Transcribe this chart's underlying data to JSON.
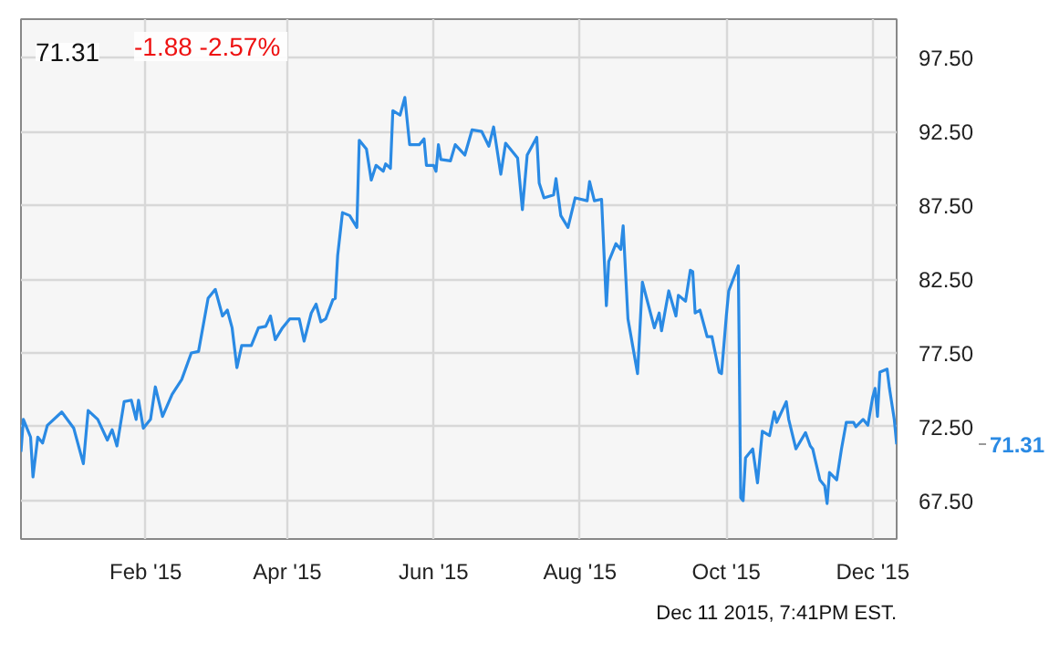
{
  "chart_data": {
    "type": "line",
    "title": "71.31",
    "subtitle": "-1.88  -2.57%",
    "x": [
      "2014-12-11",
      "2014-12-12",
      "2014-12-15",
      "2014-12-16",
      "2014-12-18",
      "2014-12-20",
      "2014-12-22",
      "2014-12-28",
      "2015-01-02",
      "2015-01-06",
      "2015-01-08",
      "2015-01-12",
      "2015-01-16",
      "2015-01-18",
      "2015-01-20",
      "2015-01-23",
      "2015-01-26",
      "2015-01-28",
      "2015-01-29",
      "2015-01-31",
      "2015-02-03",
      "2015-02-05",
      "2015-02-08",
      "2015-02-12",
      "2015-02-16",
      "2015-02-20",
      "2015-02-23",
      "2015-02-27",
      "2015-03-02",
      "2015-03-05",
      "2015-03-07",
      "2015-03-09",
      "2015-03-11",
      "2015-03-13",
      "2015-03-17",
      "2015-03-20",
      "2015-03-23",
      "2015-03-25",
      "2015-03-27",
      "2015-03-30",
      "2015-04-02",
      "2015-04-06",
      "2015-04-08",
      "2015-04-11",
      "2015-04-13",
      "2015-04-15",
      "2015-04-17",
      "2015-04-20",
      "2015-04-21",
      "2015-04-22",
      "2015-04-24",
      "2015-04-27",
      "2015-04-30",
      "2015-05-01",
      "2015-05-04",
      "2015-05-06",
      "2015-05-08",
      "2015-05-11",
      "2015-05-12",
      "2015-05-14",
      "2015-05-15",
      "2015-05-18",
      "2015-05-20",
      "2015-05-22",
      "2015-05-26",
      "2015-05-28",
      "2015-05-29",
      "2015-06-01",
      "2015-06-02",
      "2015-06-03",
      "2015-06-04",
      "2015-06-08",
      "2015-06-10",
      "2015-06-14",
      "2015-06-17",
      "2015-06-21",
      "2015-06-24",
      "2015-06-26",
      "2015-06-29",
      "2015-07-01",
      "2015-07-06",
      "2015-07-08",
      "2015-07-10",
      "2015-07-14",
      "2015-07-15",
      "2015-07-17",
      "2015-07-21",
      "2015-07-22",
      "2015-07-24",
      "2015-07-27",
      "2015-07-30",
      "2015-08-04",
      "2015-08-05",
      "2015-08-07",
      "2015-08-10",
      "2015-08-12",
      "2015-08-13",
      "2015-08-16",
      "2015-08-18",
      "2015-08-19",
      "2015-08-21",
      "2015-08-25",
      "2015-08-27",
      "2015-09-01",
      "2015-09-03",
      "2015-09-04",
      "2015-09-07",
      "2015-09-10",
      "2015-09-11",
      "2015-09-14",
      "2015-09-16",
      "2015-09-17",
      "2015-09-18",
      "2015-09-20",
      "2015-09-22",
      "2015-09-23",
      "2015-09-25",
      "2015-09-28",
      "2015-09-29",
      "2015-10-01",
      "2015-10-02",
      "2015-10-06",
      "2015-10-07",
      "2015-10-08",
      "2015-10-09",
      "2015-10-12",
      "2015-10-14",
      "2015-10-16",
      "2015-10-19",
      "2015-10-21",
      "2015-10-22",
      "2015-10-26",
      "2015-10-27",
      "2015-10-30",
      "2015-11-03",
      "2015-11-05",
      "2015-11-06",
      "2015-11-09",
      "2015-11-11",
      "2015-11-12",
      "2015-11-13",
      "2015-11-16",
      "2015-11-18",
      "2015-11-20",
      "2015-11-23",
      "2015-11-24",
      "2015-11-27",
      "2015-11-29",
      "2015-12-01",
      "2015-12-02",
      "2015-12-03",
      "2015-12-04",
      "2015-12-07",
      "2015-12-08",
      "2015-12-10",
      "2015-12-11"
    ],
    "series": [
      {
        "color": "#2a8ae4",
        "values": [
          70.8,
          73.0,
          71.8,
          69.1,
          71.8,
          71.4,
          72.6,
          73.5,
          72.4,
          70.0,
          73.6,
          73.0,
          71.6,
          72.3,
          71.2,
          74.2,
          74.3,
          73.0,
          74.3,
          72.4,
          73.0,
          75.2,
          73.2,
          74.7,
          75.7,
          77.5,
          77.6,
          81.2,
          81.8,
          80.0,
          80.4,
          79.2,
          76.5,
          78.0,
          78.0,
          79.2,
          79.3,
          80.0,
          78.4,
          79.2,
          79.8,
          79.8,
          78.3,
          80.2,
          80.8,
          79.6,
          79.8,
          81.1,
          81.2,
          84.1,
          87.0,
          86.8,
          86.0,
          91.9,
          91.3,
          89.2,
          90.2,
          89.8,
          90.3,
          90.0,
          93.9,
          93.6,
          94.8,
          91.6,
          91.6,
          92.0,
          90.2,
          90.2,
          89.8,
          91.6,
          90.6,
          90.5,
          91.6,
          90.9,
          92.6,
          92.5,
          91.5,
          92.8,
          89.6,
          91.7,
          90.7,
          87.2,
          90.9,
          92.1,
          89.0,
          88.0,
          88.2,
          89.3,
          86.8,
          86.0,
          88.0,
          87.8,
          89.1,
          87.8,
          87.9,
          80.7,
          83.7,
          84.9,
          84.5,
          86.1,
          79.8,
          76.1,
          82.3,
          79.2,
          80.2,
          79.0,
          81.7,
          80.0,
          81.4,
          81.0,
          83.1,
          83.0,
          80.2,
          80.4,
          79.2,
          78.6,
          78.6,
          76.2,
          76.1,
          80.0,
          81.7,
          83.4,
          67.7,
          67.5,
          70.4,
          71.0,
          68.7,
          72.2,
          71.9,
          73.5,
          72.8,
          74.2,
          73.0,
          71.0,
          72.1,
          71.2,
          71.0,
          68.9,
          68.5,
          67.3,
          69.4,
          68.9,
          71.0,
          72.8,
          72.8,
          72.5,
          73.0,
          72.6,
          74.5,
          75.1,
          73.2,
          76.2,
          76.4,
          75.1,
          73.0,
          71.31
        ]
      }
    ],
    "xlim": [
      "2014-12-11",
      "2015-12-11"
    ],
    "xticks": [
      {
        "value": "2015-02-01",
        "label": "Feb '15"
      },
      {
        "value": "2015-04-01",
        "label": "Apr '15"
      },
      {
        "value": "2015-06-01",
        "label": "Jun '15"
      },
      {
        "value": "2015-08-01",
        "label": "Aug '15"
      },
      {
        "value": "2015-10-01",
        "label": "Oct '15"
      },
      {
        "value": "2015-12-01",
        "label": "Dec '15"
      }
    ],
    "ylim": [
      64.9,
      100.1
    ],
    "yticks": [
      {
        "value": 67.5,
        "label": "67.50"
      },
      {
        "value": 72.5,
        "label": "72.50"
      },
      {
        "value": 77.5,
        "label": "77.50"
      },
      {
        "value": 82.5,
        "label": "82.50"
      },
      {
        "value": 87.5,
        "label": "87.50"
      },
      {
        "value": 92.5,
        "label": "92.50"
      },
      {
        "value": 97.5,
        "label": "97.50"
      }
    ],
    "grid": true,
    "line_style": "solid",
    "annotations": [
      "71.31",
      "Dec 11 2015, 7:41PM EST."
    ]
  }
}
